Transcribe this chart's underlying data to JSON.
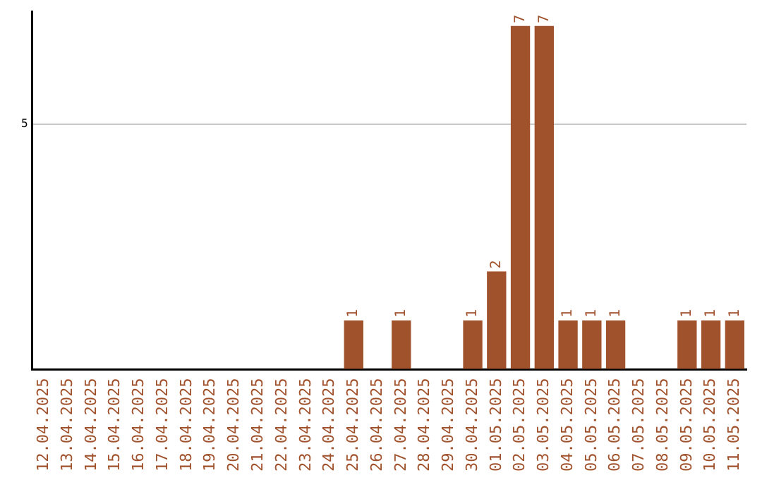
{
  "chart_data": {
    "type": "bar",
    "categories": [
      "12.04.2025",
      "13.04.2025",
      "14.04.2025",
      "15.04.2025",
      "16.04.2025",
      "17.04.2025",
      "18.04.2025",
      "19.04.2025",
      "20.04.2025",
      "21.04.2025",
      "22.04.2025",
      "23.04.2025",
      "24.04.2025",
      "25.04.2025",
      "26.04.2025",
      "27.04.2025",
      "28.04.2025",
      "29.04.2025",
      "30.04.2025",
      "01.05.2025",
      "02.05.2025",
      "03.05.2025",
      "04.05.2025",
      "05.05.2025",
      "06.05.2025",
      "07.05.2025",
      "08.05.2025",
      "09.05.2025",
      "10.05.2025",
      "11.05.2025"
    ],
    "values": [
      null,
      null,
      null,
      null,
      null,
      null,
      null,
      null,
      null,
      null,
      null,
      null,
      null,
      1,
      null,
      1,
      null,
      null,
      1,
      2,
      7,
      7,
      1,
      1,
      1,
      null,
      null,
      1,
      1,
      1
    ],
    "value_labels": [
      null,
      null,
      null,
      null,
      null,
      null,
      null,
      null,
      null,
      null,
      null,
      null,
      null,
      "1",
      null,
      "1",
      null,
      null,
      "1",
      "2",
      "7",
      "7",
      "1",
      "1",
      "1",
      null,
      null,
      "1",
      "1",
      "1"
    ],
    "color": "#a0522d",
    "ylim": [
      0,
      7.3
    ],
    "yticks": [
      {
        "value": 0,
        "label": null
      },
      5
    ],
    "grid": "y"
  }
}
